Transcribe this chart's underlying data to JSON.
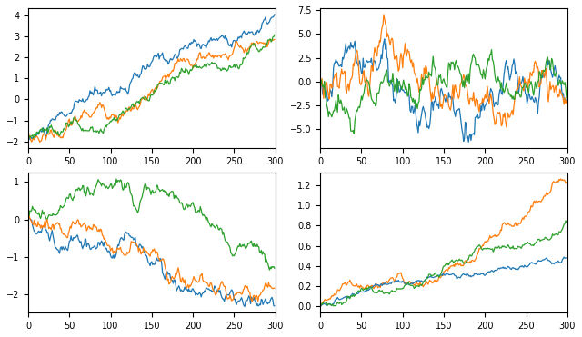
{
  "n_points": 300,
  "colors": [
    "#1f77b4",
    "#ff7f0e",
    "#2ca02c"
  ],
  "figsize": [
    6.4,
    3.71
  ],
  "dpi": 100,
  "linewidth": 0.9
}
